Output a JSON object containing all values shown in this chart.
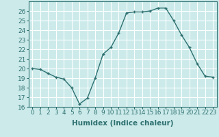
{
  "x": [
    0,
    1,
    2,
    3,
    4,
    5,
    6,
    7,
    8,
    9,
    10,
    11,
    12,
    13,
    14,
    15,
    16,
    17,
    18,
    19,
    20,
    21,
    22,
    23
  ],
  "y": [
    20.0,
    19.9,
    19.5,
    19.1,
    18.9,
    18.0,
    16.3,
    16.9,
    19.0,
    21.5,
    22.2,
    23.7,
    25.8,
    25.9,
    25.9,
    26.0,
    26.3,
    26.3,
    25.0,
    23.5,
    22.2,
    20.5,
    19.2,
    19.1
  ],
  "line_color": "#2e7070",
  "marker": "+",
  "marker_size": 3,
  "marker_lw": 1.0,
  "bg_color": "#cceaea",
  "grid_color": "#ffffff",
  "xlabel": "Humidex (Indice chaleur)",
  "xlim": [
    -0.5,
    23.5
  ],
  "ylim": [
    16,
    27
  ],
  "yticks": [
    16,
    17,
    18,
    19,
    20,
    21,
    22,
    23,
    24,
    25,
    26
  ],
  "xticks": [
    0,
    1,
    2,
    3,
    4,
    5,
    6,
    7,
    8,
    9,
    10,
    11,
    12,
    13,
    14,
    15,
    16,
    17,
    18,
    19,
    20,
    21,
    22,
    23
  ],
  "xlabel_fontsize": 7.5,
  "tick_fontsize": 6.5,
  "linewidth": 1.0
}
